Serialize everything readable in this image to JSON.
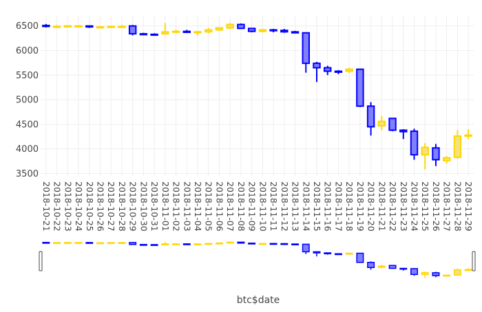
{
  "chart_data": {
    "type": "candlestick",
    "xlabel": "btc$date",
    "ylabel": "",
    "ylim": [
      3450,
      6720
    ],
    "y_ticks": [
      3500,
      4000,
      4500,
      5000,
      5500,
      6000,
      6500
    ],
    "grid": true,
    "legend": "none",
    "rangeslider": true,
    "colors": {
      "increasing_line": "#ffd700",
      "increasing_fill": "#f5e27a",
      "decreasing_line": "#0000ff",
      "decreasing_fill": "#7f7fff",
      "grid": "#eeeeee",
      "background": "#ffffff"
    },
    "categories": [
      "2018-10-21",
      "2018-10-22",
      "2018-10-23",
      "2018-10-24",
      "2018-10-25",
      "2018-10-26",
      "2018-10-27",
      "2018-10-28",
      "2018-10-29",
      "2018-10-30",
      "2018-10-31",
      "2018-11-01",
      "2018-11-02",
      "2018-11-03",
      "2018-11-04",
      "2018-11-05",
      "2018-11-06",
      "2018-11-07",
      "2018-11-08",
      "2018-11-09",
      "2018-11-10",
      "2018-11-11",
      "2018-11-12",
      "2018-11-13",
      "2018-11-14",
      "2018-11-15",
      "2018-11-16",
      "2018-11-17",
      "2018-11-18",
      "2018-11-19",
      "2018-11-20",
      "2018-11-21",
      "2018-11-22",
      "2018-11-23",
      "2018-11-24",
      "2018-11-25",
      "2018-11-26",
      "2018-11-27",
      "2018-11-28",
      "2018-11-29"
    ],
    "open": [
      6510,
      6490,
      6490,
      6500,
      6500,
      6480,
      6490,
      6490,
      6500,
      6340,
      6330,
      6340,
      6380,
      6390,
      6370,
      6380,
      6420,
      6460,
      6530,
      6450,
      6390,
      6420,
      6410,
      6380,
      6360,
      5740,
      5650,
      5580,
      5580,
      5620,
      4870,
      4470,
      4620,
      4380,
      4360,
      3880,
      4020,
      3760,
      3830,
      4260
    ],
    "high": [
      6540,
      6520,
      6510,
      6520,
      6510,
      6500,
      6500,
      6520,
      6520,
      6360,
      6350,
      6560,
      6420,
      6420,
      6400,
      6460,
      6470,
      6560,
      6550,
      6460,
      6440,
      6440,
      6440,
      6400,
      6370,
      5770,
      5690,
      5600,
      5650,
      5630,
      4950,
      4670,
      4630,
      4400,
      4410,
      4120,
      4100,
      3850,
      4380,
      4400
    ],
    "low": [
      6470,
      6470,
      6470,
      6480,
      6460,
      6460,
      6460,
      6470,
      6310,
      6320,
      6310,
      6320,
      6350,
      6360,
      6310,
      6350,
      6400,
      6440,
      6440,
      6370,
      6370,
      6370,
      6360,
      6350,
      5550,
      5360,
      5500,
      5520,
      5540,
      4850,
      4270,
      4380,
      4360,
      4200,
      3780,
      3580,
      3650,
      3700,
      3800,
      4200
    ],
    "close": [
      6490,
      6490,
      6500,
      6500,
      6480,
      6480,
      6490,
      6490,
      6340,
      6330,
      6320,
      6380,
      6390,
      6370,
      6380,
      6420,
      6460,
      6530,
      6450,
      6390,
      6420,
      6410,
      6380,
      6360,
      5740,
      5650,
      5580,
      5560,
      5620,
      4870,
      4450,
      4560,
      4380,
      4350,
      3880,
      4030,
      3780,
      3820,
      4260,
      4280
    ]
  }
}
